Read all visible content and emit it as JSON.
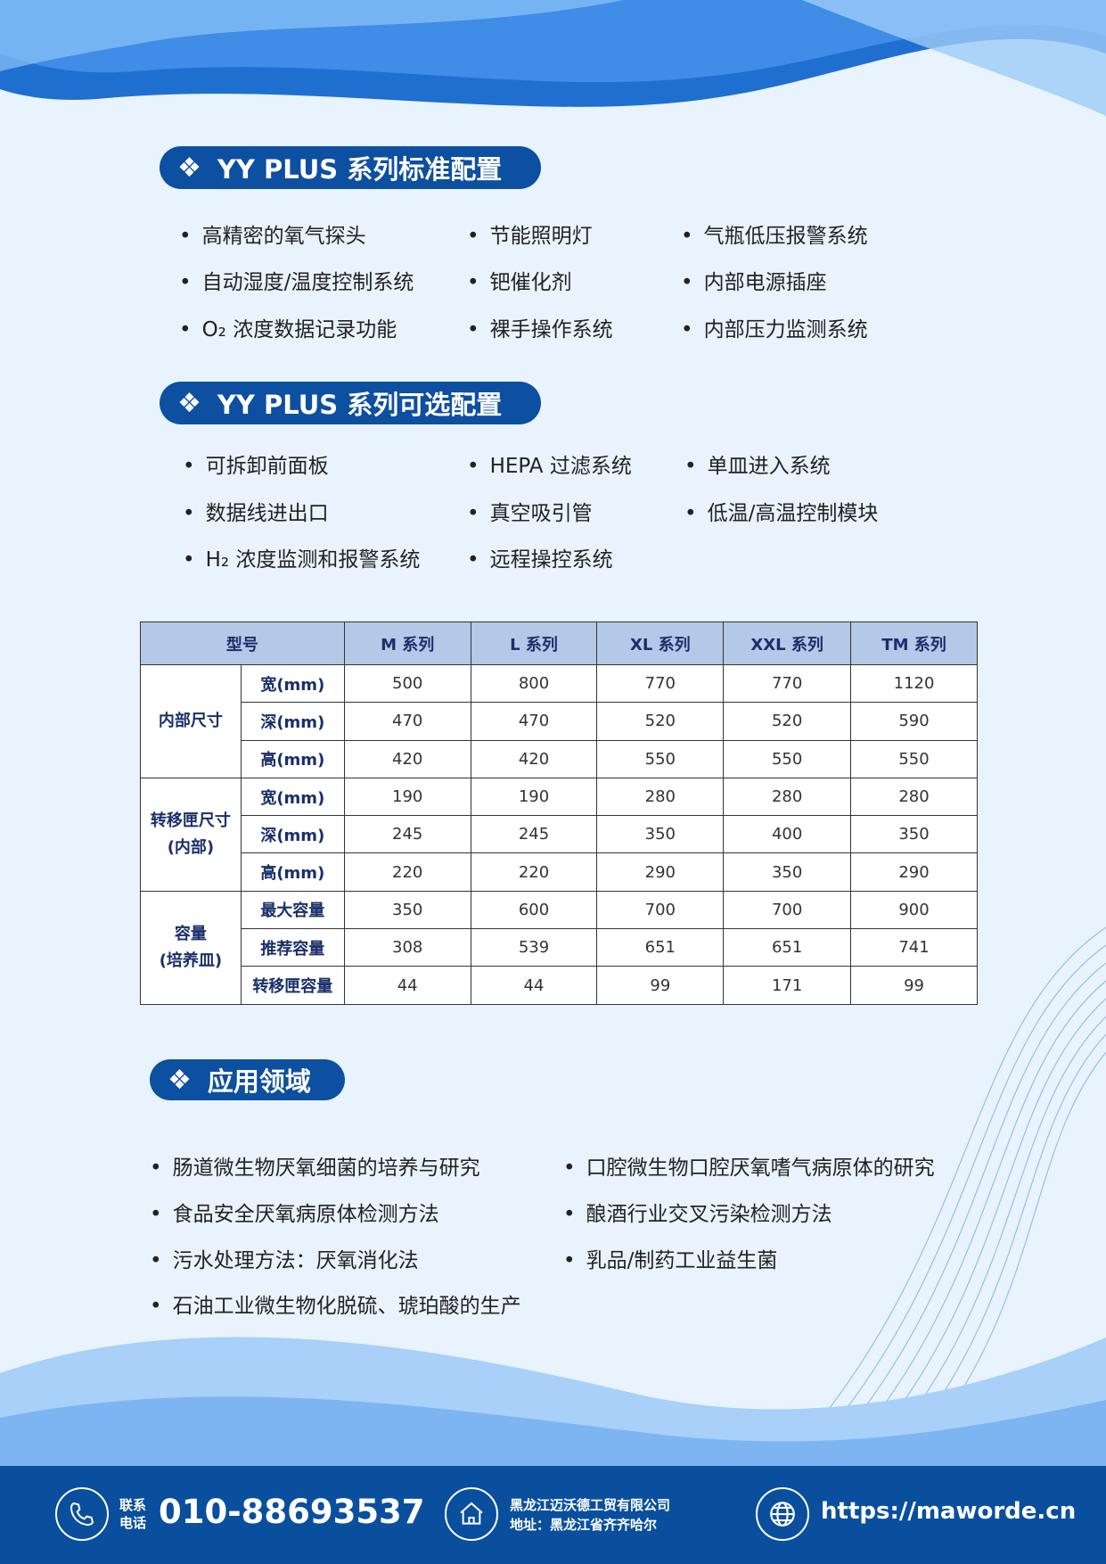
{
  "standard": {
    "title": "YY PLUS 系列标准配置",
    "items": [
      [
        "高精密的氧气探头",
        "自动湿度/温度控制系统",
        "O₂ 浓度数据记录功能"
      ],
      [
        "节能照明灯",
        "钯催化剂",
        "裸手操作系统"
      ],
      [
        "气瓶低压报警系统",
        "内部电源插座",
        "内部压力监测系统"
      ]
    ]
  },
  "optional": {
    "title": "YY PLUS 系列可选配置",
    "items": [
      [
        "可拆卸前面板",
        "数据线进出口",
        "H₂ 浓度监测和报警系统"
      ],
      [
        "HEPA 过滤系统",
        "真空吸引管",
        "远程操控系统"
      ],
      [
        "单皿进入系统",
        "低温/高温控制模块"
      ]
    ]
  },
  "table": {
    "header": [
      "型号",
      "M 系列",
      "L 系列",
      "XL 系列",
      "XXL 系列",
      "TM 系列"
    ],
    "groups": [
      {
        "label": "内部尺寸",
        "rows": [
          [
            "宽(mm)",
            "500",
            "800",
            "770",
            "770",
            "1120"
          ],
          [
            "深(mm)",
            "470",
            "470",
            "520",
            "520",
            "590"
          ],
          [
            "高(mm)",
            "420",
            "420",
            "550",
            "550",
            "550"
          ]
        ]
      },
      {
        "label": "转移匣尺寸\n(内部)",
        "rows": [
          [
            "宽(mm)",
            "190",
            "190",
            "280",
            "280",
            "280"
          ],
          [
            "深(mm)",
            "245",
            "245",
            "350",
            "400",
            "350"
          ],
          [
            "高(mm)",
            "220",
            "220",
            "290",
            "350",
            "290"
          ]
        ]
      },
      {
        "label": "容量\n(培养皿)",
        "rows": [
          [
            "最大容量",
            "350",
            "600",
            "700",
            "700",
            "900"
          ],
          [
            "推荐容量",
            "308",
            "539",
            "651",
            "651",
            "741"
          ],
          [
            "转移匣容量",
            "44",
            "44",
            "99",
            "171",
            "99"
          ]
        ]
      }
    ]
  },
  "applications": {
    "title": "应用领域",
    "items": [
      [
        "肠道微生物厌氧细菌的培养与研究",
        "食品安全厌氧病原体检测方法",
        "污水处理方法：厌氧消化法",
        "石油工业微生物化脱硫、琥珀酸的生产"
      ],
      [
        "口腔微生物口腔厌氧嗜气病原体的研究",
        "酿酒行业交叉污染检测方法",
        "乳品/制药工业益生菌"
      ]
    ]
  },
  "footer": {
    "contact_label_1": "联系",
    "contact_label_2": "电话",
    "phone": "010-88693537",
    "company": "黑龙江迈沃德工贸有限公司",
    "address": "地址：黑龙江省齐齐哈尔",
    "website": "https://maworde.cn"
  },
  "colors": {
    "brand": "#0d4fa0",
    "footer": "#0a4f9e",
    "table_header": "#b4c8e8"
  }
}
